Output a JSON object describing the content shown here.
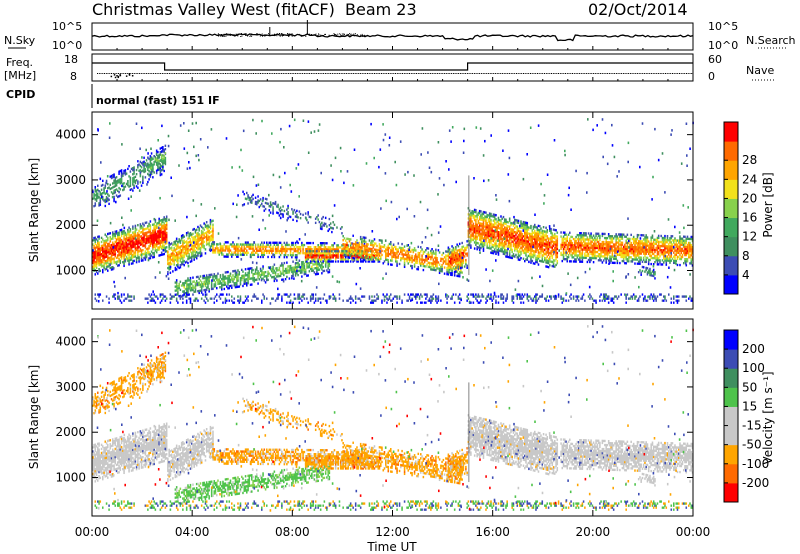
{
  "header": {
    "station": "Christmas Valley West (fitACF)",
    "beam": "Beam 23",
    "date": "02/Oct/2014"
  },
  "noise_panel": {
    "left_label": "N.Sky",
    "right_label": "N.Search",
    "ticks": [
      "10^5",
      "10^0"
    ]
  },
  "freq_panel": {
    "left_label": "Freq.",
    "left_units": "[MHz]",
    "right_label": "Nave",
    "left_ticks": [
      "18",
      "8"
    ],
    "right_ticks": [
      "60",
      "0"
    ]
  },
  "cpid": {
    "label": "CPID",
    "value": "normal (fast) 151 IF"
  },
  "colors": {
    "power": [
      "#0000ff",
      "#3c4cb4",
      "#3f8f5f",
      "#41a95e",
      "#88d14c",
      "#f2e11b",
      "#ffa500",
      "#ff6a00",
      "#ff0000"
    ],
    "velocity": [
      "#ff0000",
      "#ff6a00",
      "#ffa500",
      "#c8c8c8",
      "#c8c8c8",
      "#4ec34b",
      "#3f8f5f",
      "#3c4cb4",
      "#0000ff"
    ],
    "gray": "#c8c8c8"
  },
  "chart_data": [
    {
      "type": "heatmap",
      "name": "power",
      "ylabel": "Slant Range [km]",
      "y_ticks": [
        1000,
        2000,
        3000,
        4000
      ],
      "ylim": [
        150,
        4500
      ],
      "xlim": [
        0,
        24
      ],
      "x_ticks": [
        "00:00",
        "04:00",
        "08:00",
        "12:00",
        "16:00",
        "20:00",
        "00:00"
      ],
      "colorbar_label": "Power [dB]",
      "colorbar_ticks": [
        "4",
        "8",
        "12",
        "16",
        "20",
        "24",
        "28"
      ],
      "colorbar_range": [
        0,
        30
      ]
    },
    {
      "type": "heatmap",
      "name": "velocity",
      "ylabel": "Slant Range [km]",
      "y_ticks": [
        1000,
        2000,
        3000,
        4000
      ],
      "ylim": [
        150,
        4500
      ],
      "xlim": [
        0,
        24
      ],
      "xlabel": "Time UT",
      "x_ticks": [
        "00:00",
        "04:00",
        "08:00",
        "12:00",
        "16:00",
        "20:00",
        "00:00"
      ],
      "colorbar_label": "Velocity [m s⁻¹]",
      "colorbar_ticks": [
        "200",
        "100",
        "50",
        "15",
        "-15",
        "-50",
        "-100",
        "-200"
      ]
    }
  ]
}
